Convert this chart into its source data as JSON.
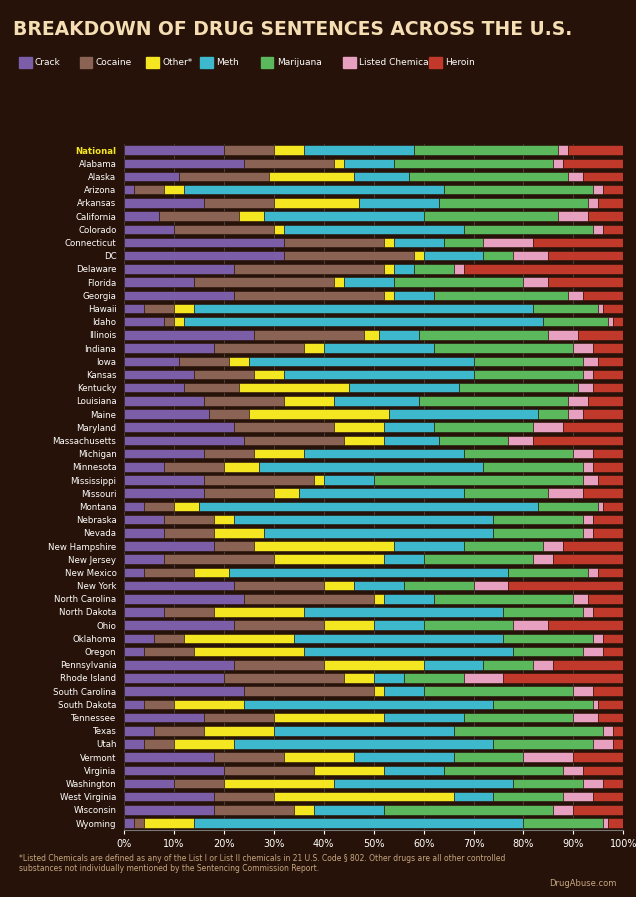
{
  "title": "BREAKDOWN OF DRUG SENTENCES ACROSS THE U.S.",
  "bg_color": "#261208",
  "title_color": "#f5deb3",
  "footnote": "*Listed Chemicals are defined as any of the List I or List II chemicals in 21 U.S. Code § 802. Other drugs are all other controlled\nsubstances not individually mentioned by the Sentencing Commission Report.",
  "source": "DrugAbuse.com",
  "categories": [
    "Crack",
    "Cocaine",
    "Other*",
    "Meth",
    "Marijuana",
    "Listed Chemical*",
    "Heroin"
  ],
  "colors": [
    "#7b5ea7",
    "#8b6355",
    "#f5e622",
    "#3db8cc",
    "#5cb85c",
    "#e8a0c0",
    "#c0392b"
  ],
  "states": [
    "National",
    "Alabama",
    "Alaska",
    "Arizona",
    "Arkansas",
    "California",
    "Colorado",
    "Connecticut",
    "DC",
    "Delaware",
    "Florida",
    "Georgia",
    "Hawaii",
    "Idaho",
    "Illinois",
    "Indiana",
    "Iowa",
    "Kansas",
    "Kentucky",
    "Louisiana",
    "Maine",
    "Maryland",
    "Massachusetts",
    "Michigan",
    "Minnesota",
    "Mississippi",
    "Missouri",
    "Montana",
    "Nebraska",
    "Nevada",
    "New Hampshire",
    "New Jersey",
    "New Mexico",
    "New York",
    "North Carolina",
    "North Dakota",
    "Ohio",
    "Oklahoma",
    "Oregon",
    "Pennsylvania",
    "Rhode Island",
    "South Carolina",
    "South Dakota",
    "Tennessee",
    "Texas",
    "Utah",
    "Vermont",
    "Virginia",
    "Washington",
    "West Virginia",
    "Wisconsin",
    "Wyoming"
  ],
  "data": {
    "National": [
      0.2,
      0.1,
      0.06,
      0.22,
      0.29,
      0.02,
      0.11
    ],
    "Alabama": [
      0.24,
      0.18,
      0.02,
      0.1,
      0.32,
      0.02,
      0.12
    ],
    "Alaska": [
      0.11,
      0.18,
      0.17,
      0.11,
      0.32,
      0.03,
      0.08
    ],
    "Arizona": [
      0.02,
      0.06,
      0.04,
      0.52,
      0.3,
      0.02,
      0.04
    ],
    "Arkansas": [
      0.16,
      0.14,
      0.17,
      0.16,
      0.3,
      0.02,
      0.05
    ],
    "California": [
      0.07,
      0.16,
      0.05,
      0.32,
      0.27,
      0.06,
      0.07
    ],
    "Colorado": [
      0.1,
      0.2,
      0.02,
      0.36,
      0.26,
      0.02,
      0.04
    ],
    "Connecticut": [
      0.32,
      0.2,
      0.02,
      0.1,
      0.08,
      0.1,
      0.18
    ],
    "DC": [
      0.32,
      0.26,
      0.02,
      0.12,
      0.06,
      0.07,
      0.15
    ],
    "Delaware": [
      0.22,
      0.3,
      0.02,
      0.04,
      0.08,
      0.02,
      0.32
    ],
    "Florida": [
      0.14,
      0.28,
      0.02,
      0.1,
      0.26,
      0.05,
      0.15
    ],
    "Georgia": [
      0.22,
      0.3,
      0.02,
      0.08,
      0.27,
      0.03,
      0.08
    ],
    "Hawaii": [
      0.04,
      0.06,
      0.04,
      0.68,
      0.13,
      0.01,
      0.04
    ],
    "Idaho": [
      0.08,
      0.02,
      0.02,
      0.72,
      0.13,
      0.01,
      0.02
    ],
    "Illinois": [
      0.26,
      0.22,
      0.03,
      0.08,
      0.26,
      0.06,
      0.09
    ],
    "Indiana": [
      0.18,
      0.18,
      0.04,
      0.22,
      0.28,
      0.04,
      0.06
    ],
    "Iowa": [
      0.11,
      0.1,
      0.04,
      0.45,
      0.22,
      0.03,
      0.05
    ],
    "Kansas": [
      0.14,
      0.12,
      0.06,
      0.38,
      0.22,
      0.02,
      0.06
    ],
    "Kentucky": [
      0.12,
      0.11,
      0.22,
      0.22,
      0.24,
      0.03,
      0.06
    ],
    "Louisiana": [
      0.16,
      0.16,
      0.1,
      0.17,
      0.3,
      0.04,
      0.07
    ],
    "Maine": [
      0.17,
      0.08,
      0.28,
      0.3,
      0.06,
      0.03,
      0.08
    ],
    "Maryland": [
      0.22,
      0.2,
      0.1,
      0.1,
      0.2,
      0.06,
      0.12
    ],
    "Massachusetts": [
      0.24,
      0.2,
      0.08,
      0.11,
      0.14,
      0.05,
      0.18
    ],
    "Michigan": [
      0.16,
      0.1,
      0.1,
      0.32,
      0.22,
      0.04,
      0.06
    ],
    "Minnesota": [
      0.08,
      0.12,
      0.07,
      0.45,
      0.2,
      0.02,
      0.06
    ],
    "Mississippi": [
      0.16,
      0.22,
      0.02,
      0.1,
      0.42,
      0.03,
      0.05
    ],
    "Missouri": [
      0.16,
      0.14,
      0.05,
      0.33,
      0.17,
      0.07,
      0.08
    ],
    "Montana": [
      0.04,
      0.06,
      0.05,
      0.68,
      0.12,
      0.01,
      0.04
    ],
    "Nebraska": [
      0.08,
      0.1,
      0.04,
      0.52,
      0.18,
      0.02,
      0.06
    ],
    "Nevada": [
      0.08,
      0.1,
      0.1,
      0.46,
      0.18,
      0.02,
      0.06
    ],
    "New Hampshire": [
      0.18,
      0.08,
      0.28,
      0.14,
      0.16,
      0.04,
      0.12
    ],
    "New Jersey": [
      0.08,
      0.22,
      0.22,
      0.08,
      0.22,
      0.04,
      0.14
    ],
    "New Mexico": [
      0.04,
      0.1,
      0.07,
      0.56,
      0.16,
      0.02,
      0.05
    ],
    "New York": [
      0.22,
      0.18,
      0.06,
      0.1,
      0.14,
      0.07,
      0.23
    ],
    "North Carolina": [
      0.24,
      0.26,
      0.02,
      0.1,
      0.28,
      0.03,
      0.07
    ],
    "North Dakota": [
      0.08,
      0.1,
      0.18,
      0.4,
      0.16,
      0.02,
      0.06
    ],
    "Ohio": [
      0.22,
      0.18,
      0.1,
      0.1,
      0.18,
      0.07,
      0.15
    ],
    "Oklahoma": [
      0.06,
      0.06,
      0.22,
      0.42,
      0.18,
      0.02,
      0.04
    ],
    "Oregon": [
      0.04,
      0.1,
      0.22,
      0.42,
      0.14,
      0.04,
      0.04
    ],
    "Pennsylvania": [
      0.22,
      0.18,
      0.2,
      0.12,
      0.1,
      0.04,
      0.14
    ],
    "Rhode Island": [
      0.2,
      0.24,
      0.06,
      0.06,
      0.12,
      0.08,
      0.24
    ],
    "South Carolina": [
      0.24,
      0.26,
      0.02,
      0.08,
      0.3,
      0.04,
      0.06
    ],
    "South Dakota": [
      0.04,
      0.06,
      0.14,
      0.5,
      0.2,
      0.01,
      0.05
    ],
    "Tennessee": [
      0.16,
      0.14,
      0.22,
      0.16,
      0.22,
      0.05,
      0.05
    ],
    "Texas": [
      0.06,
      0.1,
      0.14,
      0.36,
      0.3,
      0.02,
      0.02
    ],
    "Utah": [
      0.04,
      0.06,
      0.12,
      0.52,
      0.2,
      0.04,
      0.02
    ],
    "Vermont": [
      0.18,
      0.14,
      0.14,
      0.2,
      0.14,
      0.1,
      0.1
    ],
    "Virginia": [
      0.2,
      0.18,
      0.14,
      0.12,
      0.24,
      0.04,
      0.08
    ],
    "Washington": [
      0.1,
      0.1,
      0.22,
      0.36,
      0.14,
      0.04,
      0.04
    ],
    "West Virginia": [
      0.18,
      0.12,
      0.36,
      0.08,
      0.14,
      0.06,
      0.06
    ],
    "Wisconsin": [
      0.18,
      0.16,
      0.04,
      0.14,
      0.34,
      0.04,
      0.1
    ],
    "Wyoming": [
      0.02,
      0.02,
      0.1,
      0.66,
      0.16,
      0.01,
      0.03
    ]
  }
}
